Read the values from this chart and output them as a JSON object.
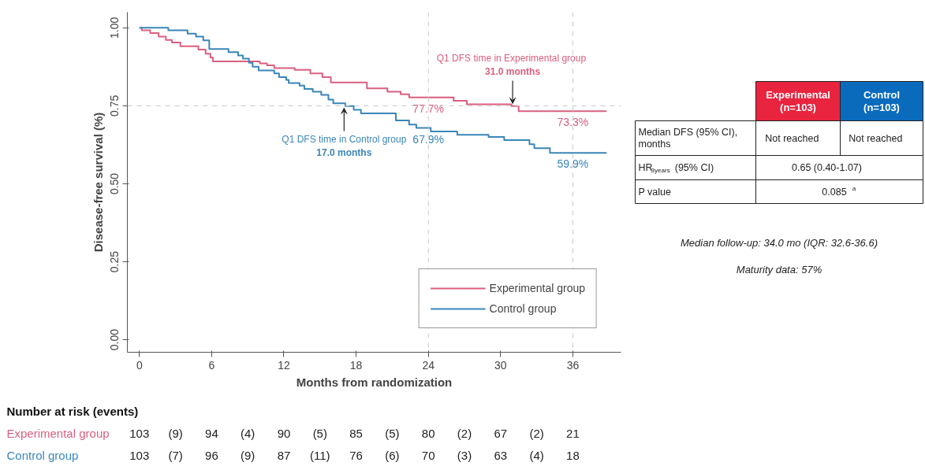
{
  "chart_data": [
    {
      "type": "step",
      "xlabel": "Months from randomization",
      "ylabel": "Disease-free survival (%)",
      "xlim": [
        -1,
        40
      ],
      "ylim": [
        -0.04,
        1.05
      ],
      "xticks": [
        0,
        6,
        12,
        18,
        24,
        30,
        36
      ],
      "yticks": [
        {
          "value": 0,
          "label": "0.00"
        },
        {
          "value": 0.25,
          "label": "0.25"
        },
        {
          "value": 0.5,
          "label": "0.50"
        },
        {
          "value": 0.75,
          "label": "0.75"
        },
        {
          "value": 1,
          "label": "1.00"
        }
      ],
      "grid": false,
      "legend": "bottom right",
      "series": [
        {
          "name": "Experimental group",
          "color": "#d95f7f",
          "x": [
            0,
            0.2,
            0.9,
            1.6,
            2.2,
            2.7,
            3.4,
            4.9,
            5.5,
            5.9,
            6.1,
            10.0,
            10.6,
            11.2,
            12.9,
            14.2,
            15.2,
            15.9,
            18.9,
            20.6,
            21.7,
            22.4,
            26.1,
            27.2,
            30.9,
            31.5,
            38.8
          ],
          "values": [
            1.0,
            0.992,
            0.983,
            0.972,
            0.961,
            0.953,
            0.941,
            0.93,
            0.917,
            0.905,
            0.892,
            0.886,
            0.88,
            0.871,
            0.865,
            0.854,
            0.842,
            0.825,
            0.806,
            0.795,
            0.787,
            0.777,
            0.766,
            0.755,
            0.749,
            0.733,
            0.733
          ]
        },
        {
          "name": "Control group",
          "color": "#3a86b8",
          "x": [
            0,
            2.4,
            4.0,
            4.7,
            5.3,
            5.8,
            7.4,
            8.2,
            8.6,
            9.1,
            9.4,
            9.9,
            11.2,
            11.6,
            12.2,
            12.4,
            13.3,
            13.7,
            14.4,
            15.1,
            15.7,
            16.1,
            17.1,
            17.8,
            18.4,
            21.3,
            22.4,
            23.0,
            24.2,
            26.4,
            29.0,
            30.3,
            32.4,
            32.8,
            34.1,
            38.8
          ],
          "values": [
            1.0,
            0.992,
            0.981,
            0.972,
            0.96,
            0.932,
            0.922,
            0.911,
            0.901,
            0.888,
            0.875,
            0.863,
            0.854,
            0.842,
            0.833,
            0.823,
            0.815,
            0.804,
            0.795,
            0.785,
            0.77,
            0.758,
            0.749,
            0.737,
            0.726,
            0.703,
            0.69,
            0.679,
            0.668,
            0.657,
            0.65,
            0.64,
            0.627,
            0.614,
            0.599,
            0.599
          ]
        }
      ],
      "ref_lines": [
        {
          "axis": "y",
          "value": 0.75,
          "color": "#c8c8c8",
          "line_style": "dashed"
        },
        {
          "axis": "x",
          "value": 24,
          "color": "#c8c8c8",
          "line_style": "dashed"
        },
        {
          "axis": "x",
          "value": 36,
          "color": "#c8c8c8",
          "line_style": "dashed"
        }
      ],
      "annotations": [
        {
          "text": "77.7%",
          "x": 24,
          "y": 0.777
        },
        {
          "text": "67.9%",
          "x": 24,
          "y": 0.679
        },
        {
          "text": "73.3%",
          "x": 36,
          "y": 0.733
        },
        {
          "text": "59.9%",
          "x": 36,
          "y": 0.599
        },
        {
          "text": "Q1 DFS time in Control group\n17.0 months",
          "x": 17,
          "y": 0.75
        },
        {
          "text": "Q1 DFS time in Experimental  group\n31.0 months",
          "x": 31,
          "y": 0.75
        }
      ]
    },
    {
      "type": "other",
      "title": "Number at risk (events)",
      "categories": [
        null,
        null,
        null,
        null,
        null,
        null,
        null,
        null,
        null,
        null,
        null,
        null,
        null
      ],
      "y_categories": [
        "Experimental group",
        "Control group"
      ],
      "colors": [
        "#d95f7f",
        "#3a86b8"
      ],
      "cell_labels": [
        [
          "103",
          "(9)",
          "94",
          "(4)",
          "90",
          "(5)",
          "85",
          "(5)",
          "80",
          "(2)",
          "67",
          "(2)",
          "21"
        ],
        [
          "103",
          "(7)",
          "96",
          "(9)",
          "87",
          "(11)",
          "76",
          "(6)",
          "70",
          "(3)",
          "63",
          "(4)",
          "18"
        ]
      ]
    },
    {
      "type": "other",
      "categories": [
        "Experimental (n=103)",
        "Control (n=103)"
      ],
      "colors": [
        "#e8243f",
        "#0a6bbd"
      ],
      "y_categories": [
        "Median DFS (95% CI), months",
        "HR$_{3years}$ (95% CI)",
        "P value"
      ],
      "cell_labels": [
        [
          "Not reached",
          "Not reached"
        ],
        [
          "0.65 (0.40-1.07)",
          null
        ],
        [
          "0.085$^{a}$",
          null
        ]
      ],
      "annotations": [
        "Median follow-up: 34.0 mo (IQR: 32.6-36.6)",
        "Maturity data: 57%"
      ]
    }
  ]
}
